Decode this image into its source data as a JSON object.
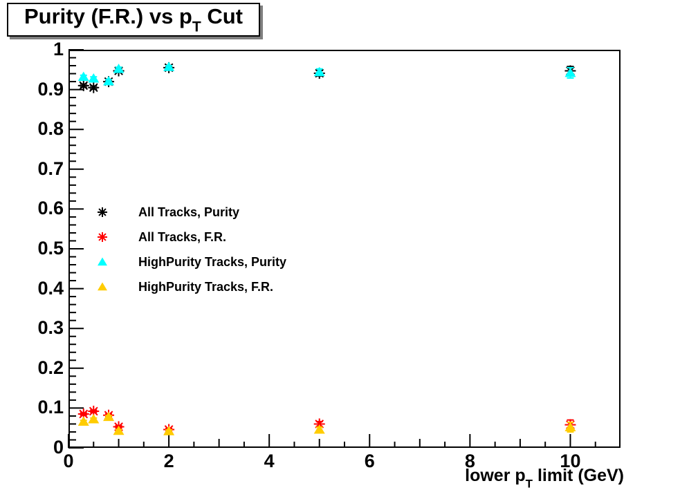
{
  "header": {
    "title_pre": "Purity (F.R.) vs p",
    "title_sub": "T",
    "title_post": " Cut"
  },
  "axes": {
    "xlabel_pre": "lower p",
    "xlabel_sub": "T",
    "xlabel_post": " limit (GeV)"
  },
  "colors": {
    "background": "#ffffff",
    "frame": "#000000",
    "title_shadow": "#7f7f7f",
    "all_tracks_purity": "#000000",
    "all_tracks_fr": "#ff0000",
    "highpurity_purity": "#00ffff",
    "highpurity_fr": "#ffcc00"
  },
  "chart_data": {
    "type": "scatter",
    "title": "Purity (F.R.) vs p_T Cut",
    "xlabel": "lower p_T limit (GeV)",
    "ylabel": "",
    "xlim": [
      0,
      11
    ],
    "ylim": [
      0,
      1
    ],
    "grid": false,
    "legend_position": "center-left",
    "x_ticks": [
      {
        "v": 0,
        "label": "0"
      },
      {
        "v": 2,
        "label": "2"
      },
      {
        "v": 4,
        "label": "4"
      },
      {
        "v": 6,
        "label": "6"
      },
      {
        "v": 8,
        "label": "8"
      },
      {
        "v": 10,
        "label": "10"
      }
    ],
    "x_medium_ticks": [
      1,
      3,
      5,
      7,
      9
    ],
    "x_minor_ticks": [
      0.5,
      1.5,
      2.5,
      3.5,
      4.5,
      5.5,
      6.5,
      7.5,
      8.5,
      9.5,
      10.5
    ],
    "y_ticks": [
      {
        "v": 1,
        "label": "1"
      },
      {
        "v": 0.9,
        "label": "0.9"
      },
      {
        "v": 0.8,
        "label": "0.8"
      },
      {
        "v": 0.7,
        "label": "0.7"
      },
      {
        "v": 0.6,
        "label": "0.6"
      },
      {
        "v": 0.5,
        "label": "0.5"
      },
      {
        "v": 0.4,
        "label": "0.4"
      },
      {
        "v": 0.3,
        "label": "0.3"
      },
      {
        "v": 0.2,
        "label": "0.2"
      },
      {
        "v": 0.1,
        "label": "0.1"
      },
      {
        "v": 0,
        "label": "0"
      }
    ],
    "y_minor_step": 0.02,
    "series": [
      {
        "name": "All Tracks, Purity",
        "marker": "asterisk",
        "color": "#000000",
        "x": [
          0.3,
          0.5,
          0.8,
          1.0,
          2.0,
          5.0,
          10.0
        ],
        "y": [
          0.91,
          0.905,
          0.92,
          0.947,
          0.955,
          0.941,
          0.947
        ],
        "yerr": [
          0.004,
          0.004,
          0.004,
          0.004,
          0.003,
          0.007,
          0.011
        ]
      },
      {
        "name": "All Tracks, F.R.",
        "marker": "asterisk",
        "color": "#ff0000",
        "x": [
          0.3,
          0.5,
          0.8,
          1.0,
          2.0,
          5.0,
          10.0
        ],
        "y": [
          0.085,
          0.092,
          0.082,
          0.053,
          0.046,
          0.06,
          0.058
        ],
        "yerr": [
          0.003,
          0.003,
          0.003,
          0.003,
          0.003,
          0.006,
          0.012
        ]
      },
      {
        "name": "HighPurity Tracks, Purity",
        "marker": "triangle",
        "color": "#00ffff",
        "x": [
          0.3,
          0.5,
          0.8,
          1.0,
          2.0,
          5.0,
          10.0
        ],
        "y": [
          0.932,
          0.928,
          0.921,
          0.952,
          0.957,
          0.944,
          0.942
        ],
        "yerr": [
          0.004,
          0.004,
          0.004,
          0.004,
          0.003,
          0.008,
          0.013
        ]
      },
      {
        "name": "HighPurity Tracks, F.R.",
        "marker": "triangle",
        "color": "#ffcc00",
        "x": [
          0.3,
          0.5,
          0.8,
          1.0,
          2.0,
          5.0,
          10.0
        ],
        "y": [
          0.066,
          0.072,
          0.078,
          0.043,
          0.042,
          0.046,
          0.052
        ],
        "yerr": [
          0.003,
          0.003,
          0.003,
          0.003,
          0.003,
          0.006,
          0.012
        ]
      }
    ]
  }
}
